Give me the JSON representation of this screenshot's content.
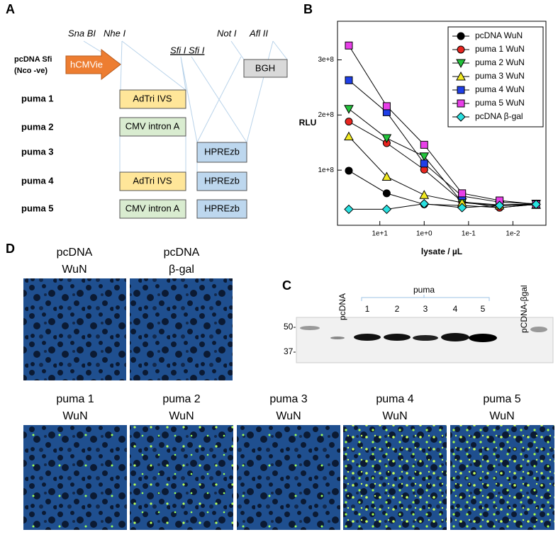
{
  "panels": {
    "a": "A",
    "b": "B",
    "c": "C",
    "d": "D"
  },
  "diagram": {
    "construct": [
      "pcDNA Sfi",
      "(Nco -ve)"
    ],
    "sites": [
      "Sna BI",
      "Nhe I",
      "Sfi I Sfi I",
      "Not I",
      "Afl II"
    ],
    "rows": [
      "puma 1",
      "puma 2",
      "puma 3",
      "puma 4",
      "puma 5"
    ],
    "elements": {
      "promoter": "hCMVie",
      "polyA": "BGH",
      "intron1": "AdTri IVS",
      "intron2": "CMV intron A",
      "hpre": "HPREzb"
    }
  },
  "gel": {
    "lanes": [
      "pcDNA",
      "puma",
      "1",
      "2",
      "3",
      "4",
      "5",
      "pCDNA-βgal"
    ],
    "markers": [
      "50-",
      "37-"
    ]
  },
  "micrographs": [
    [
      "pcDNA",
      "WuN"
    ],
    [
      "pcDNA",
      "β-gal"
    ],
    [
      "puma 1",
      "WuN"
    ],
    [
      "puma 2",
      "WuN"
    ],
    [
      "puma 3",
      "WuN"
    ],
    [
      "puma 4",
      "WuN"
    ],
    [
      "puma 5",
      "WuN"
    ]
  ],
  "chart_data": {
    "type": "line",
    "xlabel": "lysate / µL",
    "ylabel": "RLU",
    "log_x": true,
    "legend": "upper right",
    "x": [
      50,
      7,
      1,
      0.14,
      0.02,
      0.003
    ],
    "xlim": [
      90,
      0.0018
    ],
    "xticks": [
      {
        "value": 10,
        "label": "1e+1"
      },
      {
        "value": 1,
        "label": "1e+0"
      },
      {
        "value": 0.1,
        "label": "1e-1"
      },
      {
        "value": 0.01,
        "label": "1e-2"
      }
    ],
    "ylim": [
      0,
      370000000
    ],
    "yticks": [
      {
        "value": 100000000,
        "label": "1e+8"
      },
      {
        "value": 200000000,
        "label": "2e+8"
      },
      {
        "value": 300000000,
        "label": "3e+8"
      }
    ],
    "series": [
      {
        "name": "pcDNA WuN",
        "color": "#000000",
        "marker": "circle",
        "values": [
          99000000,
          58000000,
          38000000,
          36000000,
          32000000,
          38000000
        ]
      },
      {
        "name": "puma 1 WuN",
        "color": "#e8251f",
        "marker": "circle",
        "values": [
          188000000,
          149000000,
          101000000,
          43000000,
          32000000,
          38000000
        ]
      },
      {
        "name": "puma 2 WuN",
        "color": "#22c33a",
        "marker": "triangle-down",
        "values": [
          211000000,
          158000000,
          125000000,
          42000000,
          37000000,
          39000000
        ]
      },
      {
        "name": "puma 3 WuN",
        "color": "#f2ea22",
        "marker": "triangle-up",
        "values": [
          161000000,
          88000000,
          55000000,
          41000000,
          36000000,
          37000000
        ]
      },
      {
        "name": "puma 4 WuN",
        "color": "#1f3fe8",
        "marker": "square",
        "values": [
          263000000,
          205000000,
          112000000,
          53000000,
          42000000,
          39000000
        ]
      },
      {
        "name": "puma 5 WuN",
        "color": "#e83fe8",
        "marker": "square",
        "values": [
          326000000,
          216000000,
          146000000,
          58000000,
          45000000,
          38000000
        ]
      },
      {
        "name": "pcDNA β-gal",
        "color": "#29e0e0",
        "marker": "diamond",
        "values": [
          29000000,
          29000000,
          39000000,
          32000000,
          36000000,
          38000000
        ]
      }
    ]
  }
}
